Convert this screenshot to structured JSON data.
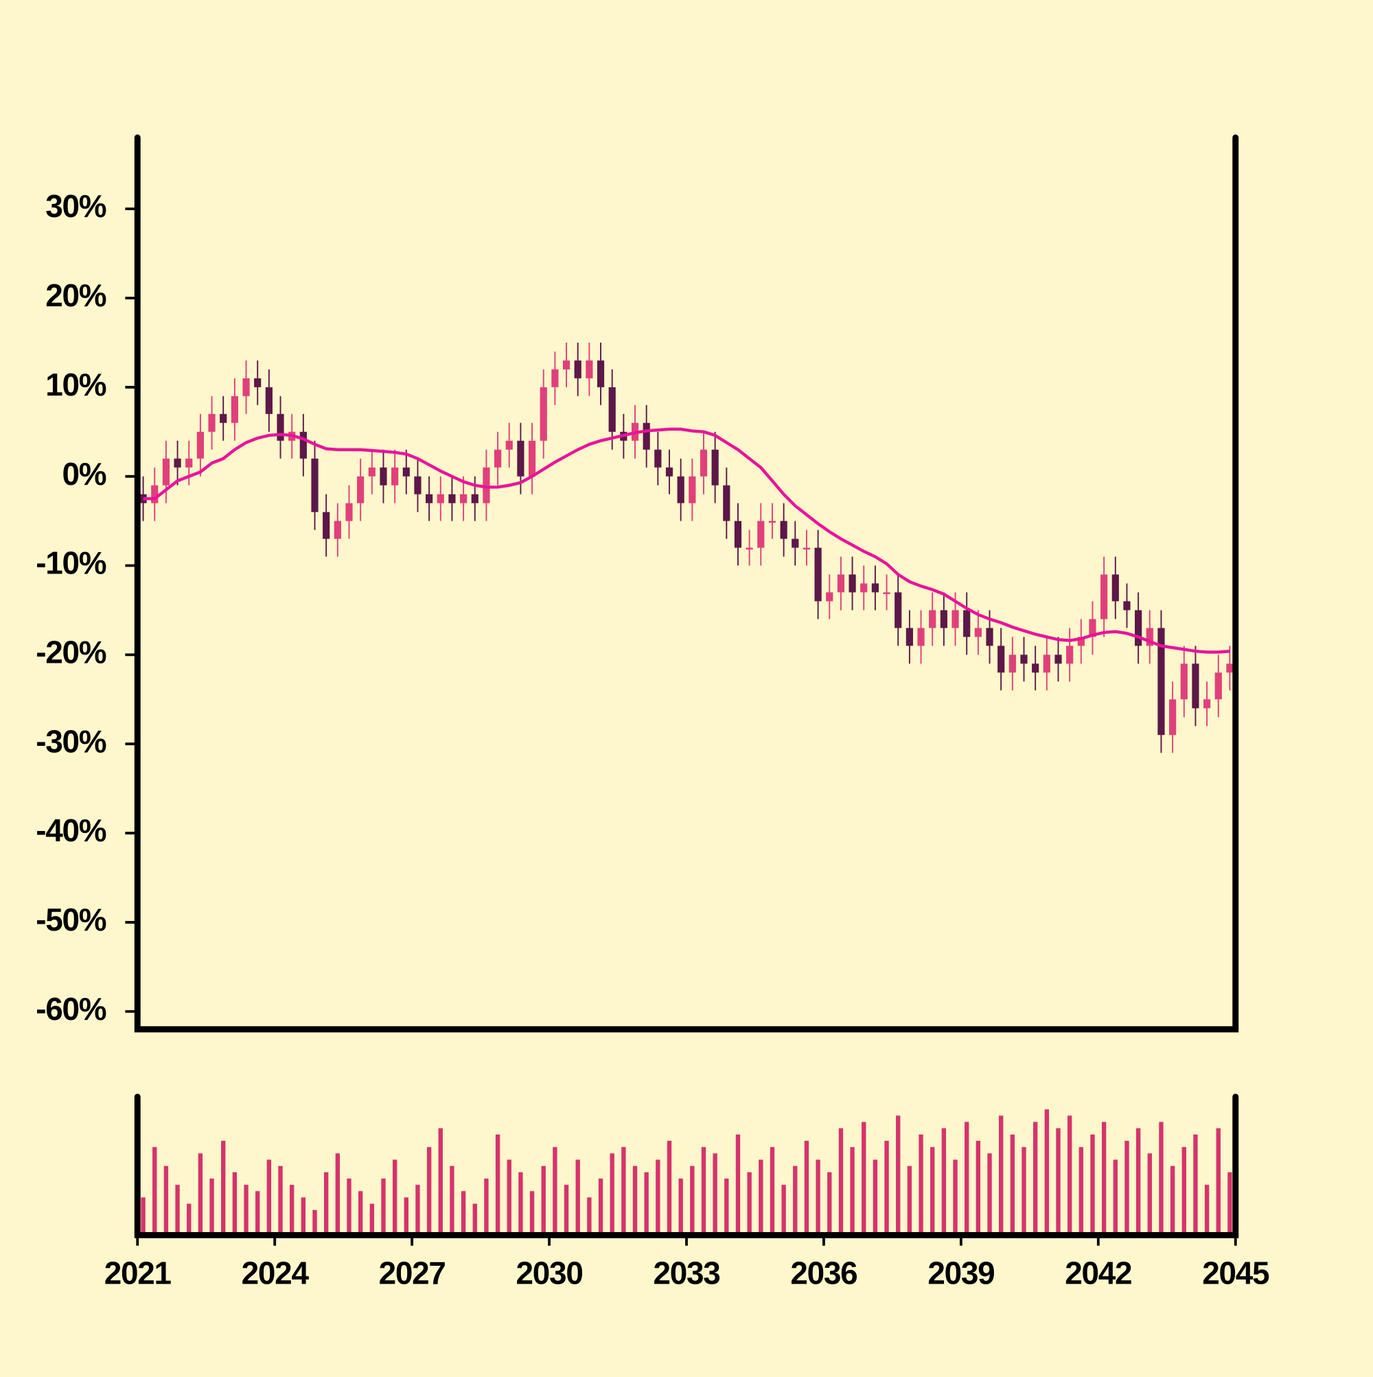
{
  "chart_data": {
    "type": "candlestick",
    "x": [
      2021.125,
      2021.375,
      2021.625,
      2021.875,
      2022.125,
      2022.375,
      2022.625,
      2022.875,
      2023.125,
      2023.375,
      2023.625,
      2023.875,
      2024.125,
      2024.375,
      2024.625,
      2024.875,
      2025.125,
      2025.375,
      2025.625,
      2025.875,
      2026.125,
      2026.375,
      2026.625,
      2026.875,
      2027.125,
      2027.375,
      2027.625,
      2027.875,
      2028.125,
      2028.375,
      2028.625,
      2028.875,
      2029.125,
      2029.375,
      2029.625,
      2029.875,
      2030.125,
      2030.375,
      2030.625,
      2030.875,
      2031.125,
      2031.375,
      2031.625,
      2031.875,
      2032.125,
      2032.375,
      2032.625,
      2032.875,
      2033.125,
      2033.375,
      2033.625,
      2033.875,
      2034.125,
      2034.375,
      2034.625,
      2034.875,
      2035.125,
      2035.375,
      2035.625,
      2035.875,
      2036.125,
      2036.375,
      2036.625,
      2036.875,
      2037.125,
      2037.375,
      2037.625,
      2037.875,
      2038.125,
      2038.375,
      2038.625,
      2038.875,
      2039.125,
      2039.375,
      2039.625,
      2039.875,
      2040.125,
      2040.375,
      2040.625,
      2040.875,
      2041.125,
      2041.375,
      2041.625,
      2041.875,
      2042.125,
      2042.375,
      2042.625,
      2042.875,
      2043.125,
      2043.375,
      2043.625,
      2043.875,
      2044.125,
      2044.375,
      2044.625,
      2044.875
    ],
    "open": [
      -2,
      -3,
      -1,
      2,
      1,
      2,
      5,
      7,
      6,
      9,
      11,
      10,
      7,
      4,
      5,
      2,
      -4,
      -7,
      -5,
      -3,
      0,
      1,
      -1,
      1,
      0,
      -2,
      -3,
      -2,
      -3,
      -2,
      -3,
      1,
      3,
      4,
      0,
      4,
      10,
      12,
      13,
      11,
      13,
      10,
      5,
      4,
      6,
      3,
      1,
      0,
      -3,
      0,
      3,
      -1,
      -5,
      -8,
      -8,
      -5,
      -5,
      -7,
      -8,
      -8,
      -14,
      -13,
      -11,
      -13,
      -12,
      -13,
      -13,
      -17,
      -19,
      -17,
      -15,
      -17,
      -15,
      -18,
      -17,
      -19,
      -22,
      -20,
      -21,
      -22,
      -20,
      -21,
      -19,
      -18,
      -16,
      -11,
      -14,
      -15,
      -19,
      -17,
      -29,
      -25,
      -21,
      -26,
      -25,
      -22
    ],
    "high": [
      0,
      1,
      4,
      4,
      4,
      7,
      9,
      9,
      11,
      13,
      13,
      12,
      9,
      7,
      7,
      4,
      -2,
      -3,
      -1,
      2,
      3,
      3,
      3,
      3,
      2,
      0,
      0,
      0,
      0,
      0,
      3,
      5,
      6,
      6,
      6,
      12,
      14,
      15,
      15,
      15,
      15,
      12,
      7,
      8,
      8,
      5,
      3,
      2,
      2,
      5,
      5,
      1,
      -3,
      -6,
      -3,
      -3,
      -3,
      -5,
      -6,
      -6,
      -11,
      -9,
      -9,
      -10,
      -10,
      -11,
      -11,
      -15,
      -15,
      -13,
      -13,
      -13,
      -13,
      -15,
      -15,
      -17,
      -18,
      -18,
      -19,
      -18,
      -18,
      -17,
      -16,
      -14,
      -9,
      -9,
      -12,
      -13,
      -15,
      -15,
      -23,
      -19,
      -19,
      -23,
      -20,
      -19
    ],
    "low": [
      -5,
      -5,
      -3,
      -1,
      -1,
      0,
      3,
      4,
      4,
      7,
      8,
      5,
      2,
      2,
      0,
      -6,
      -9,
      -9,
      -7,
      -5,
      -2,
      -3,
      -3,
      -2,
      -4,
      -5,
      -5,
      -5,
      -5,
      -5,
      -5,
      -1,
      1,
      -2,
      -2,
      2,
      8,
      10,
      9,
      9,
      8,
      3,
      2,
      2,
      1,
      -1,
      -2,
      -5,
      -5,
      -2,
      -3,
      -7,
      -10,
      -10,
      -10,
      -7,
      -9,
      -10,
      -10,
      -16,
      -16,
      -15,
      -15,
      -15,
      -15,
      -15,
      -19,
      -21,
      -21,
      -19,
      -19,
      -19,
      -20,
      -20,
      -21,
      -24,
      -24,
      -23,
      -24,
      -24,
      -23,
      -23,
      -21,
      -20,
      -18,
      -16,
      -17,
      -21,
      -21,
      -31,
      -31,
      -27,
      -28,
      -28,
      -27,
      -24
    ],
    "close": [
      -3,
      -1,
      2,
      1,
      2,
      5,
      7,
      6,
      9,
      11,
      10,
      7,
      4,
      5,
      2,
      -4,
      -7,
      -5,
      -3,
      0,
      1,
      -1,
      1,
      0,
      -2,
      -3,
      -2,
      -3,
      -2,
      -3,
      1,
      3,
      4,
      0,
      4,
      10,
      12,
      13,
      11,
      13,
      10,
      5,
      4,
      6,
      3,
      1,
      0,
      -3,
      0,
      3,
      -1,
      -5,
      -8,
      -8,
      -5,
      -5,
      -7,
      -8,
      -8,
      -14,
      -13,
      -11,
      -13,
      -12,
      -13,
      -13,
      -17,
      -19,
      -17,
      -15,
      -17,
      -15,
      -18,
      -17,
      -19,
      -22,
      -20,
      -21,
      -22,
      -20,
      -21,
      -19,
      -18,
      -16,
      -11,
      -14,
      -15,
      -19,
      -17,
      -29,
      -25,
      -21,
      -26,
      -25,
      -22,
      -21
    ],
    "ma": [
      -2.5,
      -2.5,
      -1.5,
      -0.5,
      0,
      0.5,
      1.5,
      2,
      3,
      3.8,
      4.3,
      4.6,
      4.7,
      4.6,
      4.2,
      3.6,
      3.1,
      3,
      3,
      3,
      2.9,
      2.8,
      2.7,
      2.5,
      2,
      1.3,
      0.6,
      0,
      -0.6,
      -1,
      -1.2,
      -1.2,
      -1,
      -0.7,
      0,
      0.8,
      1.6,
      2.3,
      3,
      3.6,
      4,
      4.3,
      4.6,
      4.9,
      5.1,
      5.2,
      5.3,
      5.3,
      5.1,
      5,
      4.6,
      3.8,
      3,
      2,
      1,
      -0.5,
      -2,
      -3.3,
      -4.3,
      -5.3,
      -6.2,
      -7,
      -7.7,
      -8.4,
      -9,
      -9.8,
      -11,
      -11.8,
      -12.3,
      -12.7,
      -13.2,
      -14,
      -14.8,
      -15.5,
      -16,
      -16.4,
      -16.9,
      -17.3,
      -17.7,
      -18,
      -18.3,
      -18.4,
      -18.2,
      -17.8,
      -17.5,
      -17.4,
      -17.6,
      -18,
      -18.5,
      -19,
      -19.2,
      -19.4,
      -19.6,
      -19.7,
      -19.7,
      -19.6
    ],
    "volume": [
      30,
      70,
      55,
      40,
      25,
      65,
      45,
      75,
      50,
      40,
      35,
      60,
      55,
      40,
      30,
      20,
      50,
      65,
      45,
      35,
      25,
      45,
      60,
      30,
      40,
      70,
      85,
      55,
      35,
      25,
      45,
      80,
      60,
      50,
      35,
      55,
      70,
      40,
      60,
      30,
      45,
      65,
      70,
      55,
      50,
      60,
      75,
      45,
      55,
      70,
      65,
      45,
      80,
      50,
      60,
      70,
      40,
      55,
      75,
      60,
      50,
      85,
      70,
      90,
      60,
      75,
      95,
      55,
      80,
      70,
      85,
      60,
      90,
      75,
      65,
      95,
      80,
      70,
      90,
      100,
      85,
      95,
      70,
      80,
      90,
      60,
      75,
      85,
      65,
      90,
      55,
      70,
      80,
      40,
      85,
      50
    ],
    "up_color": "#e0407a",
    "down_color": "#5c1848",
    "ma_color": "#e8149a",
    "volume_color": "#d6336c",
    "xlim": [
      2021,
      2045
    ],
    "xticks": [
      2021,
      2024,
      2027,
      2030,
      2033,
      2036,
      2039,
      2042,
      2045
    ],
    "ylim": [
      -62,
      38
    ],
    "yticks": [
      {
        "value": 30,
        "label": "30%"
      },
      {
        "value": 20,
        "label": "20%"
      },
      {
        "value": 10,
        "label": "10%"
      },
      {
        "value": 0,
        "label": "0%"
      },
      {
        "value": -10,
        "label": "-10%"
      },
      {
        "value": -20,
        "label": "-20%"
      },
      {
        "value": -30,
        "label": "-30%"
      },
      {
        "value": -40,
        "label": "-40%"
      },
      {
        "value": -50,
        "label": "-50%"
      },
      {
        "value": -60,
        "label": "-60%"
      }
    ]
  }
}
